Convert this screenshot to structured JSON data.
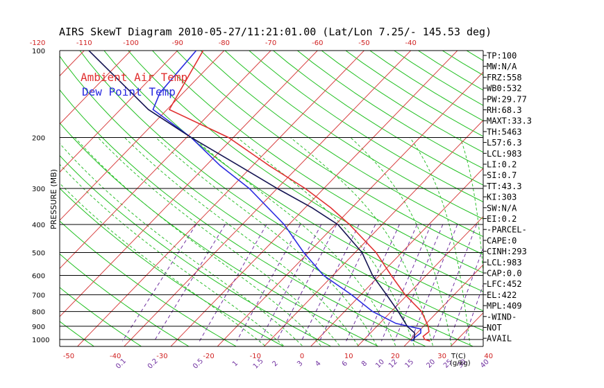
{
  "chart_data": {
    "type": "line",
    "title": "AIRS SkewT Diagram 2010-05-27/11:21:01.00 (Lat/Lon 7.25/- 145.53 deg)",
    "ylabel": "PRESSURE (MB)",
    "xlabel_right": "T(C)",
    "mixing_unit": "(g/kg)",
    "pressure_ticks": [
      100,
      200,
      300,
      400,
      500,
      600,
      700,
      800,
      900,
      1000
    ],
    "pressure_range": [
      100,
      1050
    ],
    "bottom_temp_ticks": [
      -50,
      -40,
      -30,
      -20,
      -10,
      0,
      10,
      20,
      30,
      40
    ],
    "top_temp_ticks": [
      -120,
      -110,
      -100,
      -90,
      -80,
      -70,
      -60,
      -50,
      -40
    ],
    "mixing_ratio_labels": [
      "0.1",
      "0.2",
      "0.5",
      "1",
      "1.5",
      "2",
      "3",
      "4",
      "6",
      "8",
      "10",
      "12",
      "15",
      "20",
      "25",
      "30",
      "40"
    ],
    "legend": [
      {
        "label": "Ambient Air Temp",
        "color": "#e03030"
      },
      {
        "label": "Dew Point Temp",
        "color": "#2a2ae0"
      }
    ],
    "series": [
      {
        "name": "Ambient Air Temp",
        "color": "#e03030",
        "points": [
          [
            100,
            -84.5
          ],
          [
            160,
            -79.5
          ],
          [
            200,
            -61.0
          ],
          [
            250,
            -46.5
          ],
          [
            300,
            -34.0
          ],
          [
            350,
            -24.5
          ],
          [
            400,
            -17.0
          ],
          [
            500,
            -5.5
          ],
          [
            600,
            2.5
          ],
          [
            700,
            9.5
          ],
          [
            800,
            16.5
          ],
          [
            900,
            21.0
          ],
          [
            940,
            22.3
          ],
          [
            975,
            22.0
          ],
          [
            1000,
            23.0
          ],
          [
            1013,
            24.5
          ]
        ]
      },
      {
        "name": "Dew Point Temp",
        "color": "#2a2ae0",
        "points": [
          [
            100,
            -86
          ],
          [
            140,
            -85
          ],
          [
            160,
            -83
          ],
          [
            200,
            -69
          ],
          [
            250,
            -57
          ],
          [
            300,
            -46
          ],
          [
            400,
            -31
          ],
          [
            500,
            -21
          ],
          [
            600,
            -12
          ],
          [
            700,
            -2
          ],
          [
            800,
            6
          ],
          [
            880,
            13.5
          ],
          [
            920,
            20.0
          ],
          [
            950,
            20.8
          ],
          [
            980,
            20.5
          ],
          [
            1013,
            20.5
          ]
        ]
      },
      {
        "name": "",
        "color": "#141452",
        "points": [
          [
            100,
            -109
          ],
          [
            160,
            -84
          ],
          [
            200,
            -69
          ],
          [
            250,
            -53
          ],
          [
            300,
            -40
          ],
          [
            350,
            -28.5
          ],
          [
            400,
            -19.5
          ],
          [
            500,
            -8.5
          ],
          [
            600,
            -1.5
          ],
          [
            700,
            5.5
          ],
          [
            800,
            11.5
          ],
          [
            900,
            16.5
          ],
          [
            950,
            19.5
          ],
          [
            1013,
            21.0
          ]
        ]
      }
    ],
    "grid": true
  },
  "side_panel": [
    "TP:100",
    "MW:N/A",
    "FRZ:558",
    "WB0:532",
    "PW:29.77",
    "RH:68.3",
    "MAXT:33.3",
    "TH:5463",
    "L57:6.3",
    "LCL:983",
    "LI:0.2",
    "SI:0.7",
    "TT:43.3",
    "KI:303",
    "SW:N/A",
    "EI:0.2",
    "-PARCEL-",
    "CAPE:0",
    "CINH:293",
    "LCL:983",
    "CAP:0.0",
    "LFC:452",
    "EL:422",
    "MPL:409",
    "-WIND-",
    "NOT",
    "AVAIL"
  ],
  "colors": {
    "isotherm": "#d84040",
    "dry_adiabat": "#20c020",
    "mixing_ratio": "#7030a0",
    "moist_adiabat": "#30c030",
    "axis": "#000000"
  }
}
